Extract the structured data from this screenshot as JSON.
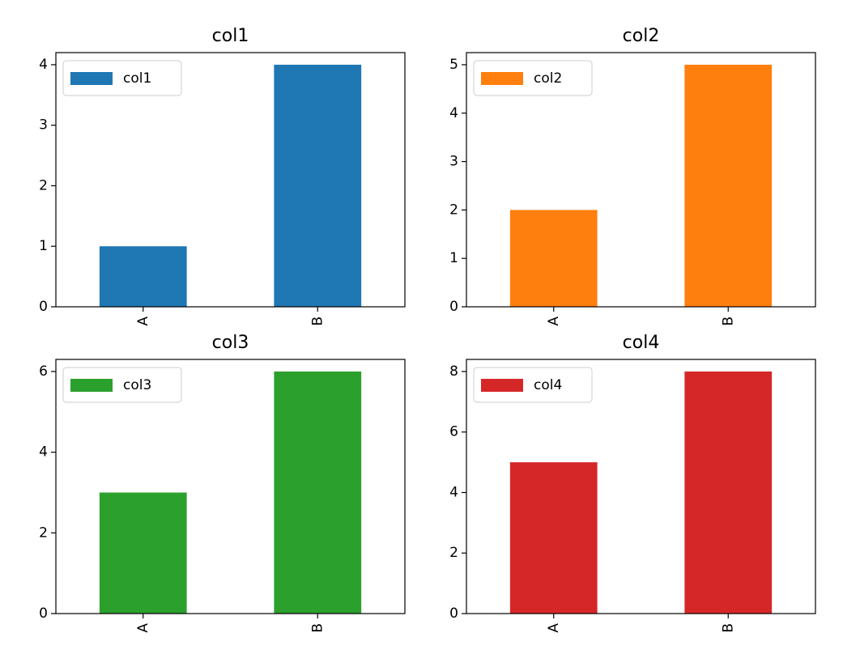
{
  "chart_data": [
    {
      "type": "bar",
      "title": "col1",
      "categories": [
        "A",
        "B"
      ],
      "series": [
        {
          "name": "col1",
          "values": [
            1,
            4
          ]
        }
      ],
      "color": "#1f77b4",
      "ylim": [
        0,
        4.2
      ],
      "yticks": [
        0,
        1,
        2,
        3,
        4
      ],
      "grid": false,
      "legend": "top-left"
    },
    {
      "type": "bar",
      "title": "col2",
      "categories": [
        "A",
        "B"
      ],
      "series": [
        {
          "name": "col2",
          "values": [
            2,
            5
          ]
        }
      ],
      "color": "#ff7f0e",
      "ylim": [
        0,
        5.25
      ],
      "yticks": [
        0,
        1,
        2,
        3,
        4,
        5
      ],
      "grid": false,
      "legend": "top-left"
    },
    {
      "type": "bar",
      "title": "col3",
      "categories": [
        "A",
        "B"
      ],
      "series": [
        {
          "name": "col3",
          "values": [
            3,
            6
          ]
        }
      ],
      "color": "#2ca02c",
      "ylim": [
        0,
        6.3
      ],
      "yticks": [
        0,
        2,
        4,
        6
      ],
      "grid": false,
      "legend": "top-left"
    },
    {
      "type": "bar",
      "title": "col4",
      "categories": [
        "A",
        "B"
      ],
      "series": [
        {
          "name": "col4",
          "values": [
            5,
            8
          ]
        }
      ],
      "color": "#d62728",
      "ylim": [
        0,
        8.4
      ],
      "yticks": [
        0,
        2,
        4,
        6,
        8
      ],
      "grid": false,
      "legend": "top-left"
    }
  ]
}
